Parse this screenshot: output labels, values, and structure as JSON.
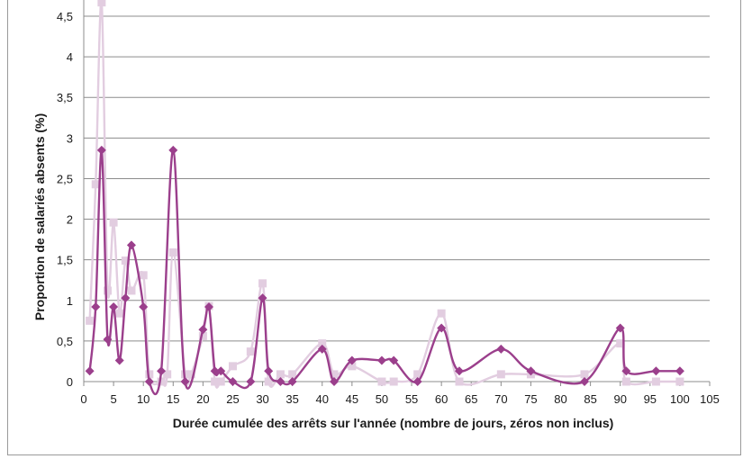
{
  "chart_data": {
    "type": "line",
    "title": "",
    "xlabel": "Durée cumulée des arrêts sur l'année (nombre de jours, zéros non inclus)",
    "ylabel": "Proportion de salariés absents (%)",
    "xlim": [
      0,
      105
    ],
    "ylim": [
      0,
      4.5
    ],
    "xticks": [
      0,
      5,
      10,
      15,
      20,
      25,
      30,
      35,
      40,
      45,
      50,
      55,
      60,
      65,
      70,
      75,
      80,
      85,
      90,
      95,
      100,
      105
    ],
    "yticks": [
      "0",
      "0,5",
      "1",
      "1,5",
      "2",
      "2,5",
      "3",
      "3,5",
      "4",
      "4,5"
    ],
    "yticks_values": [
      0,
      0.5,
      1,
      1.5,
      2,
      2.5,
      3,
      3.5,
      4,
      4.5
    ],
    "grid": "horizontal",
    "legend": "none",
    "series": [
      {
        "color": "#9b3f8c",
        "marker": "diamond",
        "x": [
          1,
          2,
          3,
          4,
          5,
          6,
          7,
          8,
          10,
          11,
          13,
          15,
          17,
          20,
          21,
          22,
          23,
          25,
          28,
          30,
          31,
          33,
          35,
          40,
          42,
          45,
          50,
          52,
          56,
          60,
          63,
          70,
          75,
          84,
          90,
          91,
          96,
          100
        ],
        "y": [
          0.13,
          0.92,
          2.85,
          0.52,
          0.92,
          0.26,
          1.03,
          1.68,
          0.92,
          0,
          0.13,
          2.85,
          0,
          0.64,
          0.92,
          0.13,
          0.13,
          0,
          0,
          1.03,
          0.13,
          0,
          0,
          0.4,
          0,
          0.26,
          0.26,
          0.26,
          0,
          0.66,
          0.13,
          0.4,
          0.13,
          0,
          0.66,
          0.13,
          0.13,
          0.13
        ]
      },
      {
        "color": "#e2cde0",
        "marker": "square",
        "x": [
          1,
          2,
          3,
          4,
          5,
          6,
          7,
          8,
          10,
          11,
          13,
          14,
          15,
          17,
          18,
          20,
          21,
          22,
          23,
          25,
          28,
          30,
          31,
          33,
          35,
          40,
          42,
          45,
          50,
          52,
          56,
          60,
          63,
          70,
          75,
          84,
          90,
          91,
          96,
          100
        ],
        "y": [
          0.75,
          2.43,
          4.67,
          1.12,
          1.96,
          0.84,
          1.49,
          1.12,
          1.31,
          0.09,
          0,
          0.09,
          1.59,
          0.09,
          0.09,
          0.56,
          0.93,
          0,
          0,
          0.19,
          0.37,
          1.21,
          0,
          0.09,
          0.09,
          0.47,
          0.09,
          0.19,
          0,
          0,
          0.09,
          0.84,
          0,
          0.09,
          0.09,
          0.09,
          0.47,
          0,
          0,
          0
        ]
      }
    ]
  }
}
